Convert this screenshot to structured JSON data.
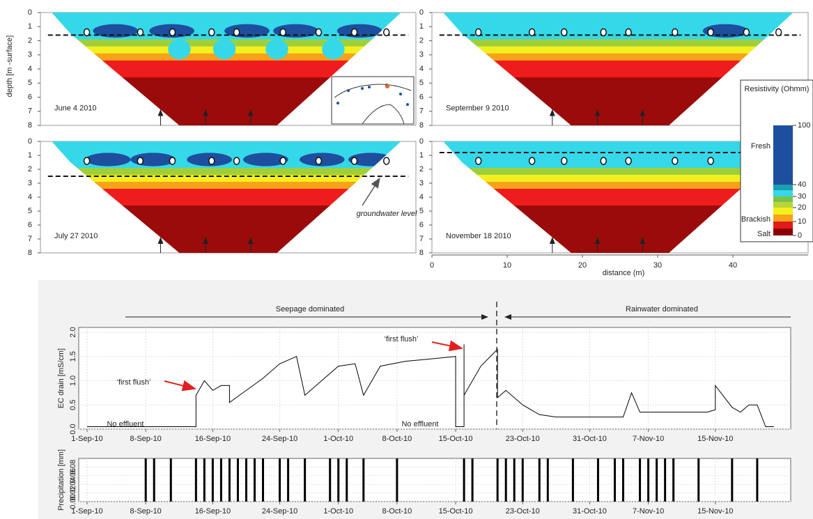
{
  "resistivity": {
    "depth_label": "depth [m -surface]",
    "depth_lim": [
      0,
      8
    ],
    "depth_ticks": [
      0,
      1,
      2,
      3,
      4,
      5,
      6,
      7,
      8
    ],
    "panels": [
      "June 4 2010",
      "September 9 2010",
      "July 27 2010",
      "November 18 2010"
    ],
    "groundwater_label": "groundwater level",
    "distance_label": "distance (m)",
    "distance_lim": [
      0,
      50
    ],
    "distance_ticks": [
      0,
      10,
      20,
      30,
      40
    ],
    "colorbar": {
      "title": "Resistivity (Ohmm)",
      "ticks": [
        0,
        10,
        20,
        30,
        40,
        100
      ],
      "classes": [
        "Fresh",
        "Brackish",
        "Salt"
      ]
    }
  },
  "chart_data": [
    {
      "type": "line",
      "y_label": "EC drain [mS/cm]",
      "annotations": [
        "Seepage dominated",
        "Rainwater dominated",
        "‘first flush’",
        "‘first flush’",
        "No effluent",
        "No effluent"
      ],
      "x": [
        "2010-09-01",
        "2010-09-14",
        "2010-09-14",
        "2010-09-15",
        "2010-09-16",
        "2010-09-17",
        "2010-09-18",
        "2010-09-18",
        "2010-09-20",
        "2010-09-22",
        "2010-09-24",
        "2010-09-26",
        "2010-09-27",
        "2010-09-29",
        "2010-10-01",
        "2010-10-03",
        "2010-10-04",
        "2010-10-06",
        "2010-10-09",
        "2010-10-12",
        "2010-10-15",
        "2010-10-15",
        "2010-10-16",
        "2010-10-16",
        "2010-10-16",
        "2010-10-18",
        "2010-10-20",
        "2010-10-20",
        "2010-10-21",
        "2010-10-23",
        "2010-10-25",
        "2010-10-27",
        "2010-11-04",
        "2010-11-05",
        "2010-11-06",
        "2010-11-14",
        "2010-11-15",
        "2010-11-15",
        "2010-11-17",
        "2010-11-18",
        "2010-11-19",
        "2010-11-20",
        "2010-11-21",
        "2010-11-22"
      ],
      "values": [
        0.05,
        0.05,
        0.7,
        1.0,
        0.8,
        0.9,
        0.9,
        0.55,
        0.8,
        1.05,
        1.35,
        1.5,
        0.7,
        1.0,
        1.3,
        1.35,
        0.7,
        1.3,
        1.4,
        1.45,
        1.5,
        0.05,
        0.05,
        1.75,
        0.7,
        1.3,
        1.65,
        0.65,
        0.8,
        0.5,
        0.3,
        0.25,
        0.25,
        0.75,
        0.35,
        0.35,
        0.4,
        0.9,
        0.45,
        0.35,
        0.5,
        0.5,
        0.05,
        0.05
      ],
      "color": "#000000",
      "xlim": [
        "2010-08-31",
        "2010-11-24"
      ],
      "xticks": [
        {
          "value": "2010-09-01",
          "label": "1-Sep-10"
        },
        {
          "value": "2010-09-08",
          "label": "8-Sep-10"
        },
        {
          "value": "2010-09-16",
          "label": "16-Sep-10"
        },
        {
          "value": "2010-09-24",
          "label": "24-Sep-10"
        },
        {
          "value": "2010-10-01",
          "label": "1-Oct-10"
        },
        {
          "value": "2010-10-08",
          "label": "8-Oct-10"
        },
        {
          "value": "2010-10-15",
          "label": "15-Oct-10"
        },
        {
          "value": "2010-10-23",
          "label": "23-Oct-10"
        },
        {
          "value": "2010-10-31",
          "label": "31-Oct-10"
        },
        {
          "value": "2010-11-07",
          "label": "7-Nov-10"
        },
        {
          "value": "2010-11-15",
          "label": "15-Nov-10"
        }
      ],
      "ylim": [
        0,
        2.1
      ],
      "yticks": [
        {
          "value": 0,
          "label": "0.0"
        },
        {
          "value": 0.5,
          "label": "0.5"
        },
        {
          "value": 1,
          "label": "1.0"
        },
        {
          "value": 1.5,
          "label": "1.5"
        },
        {
          "value": 2,
          "label": "2.0"
        }
      ],
      "grid": true
    },
    {
      "type": "bar",
      "y_label": "Precipitation [mm]",
      "x": [
        "2010-09-08",
        "2010-09-09",
        "2010-09-11",
        "2010-09-14",
        "2010-09-15",
        "2010-09-16",
        "2010-09-17",
        "2010-09-18",
        "2010-09-19",
        "2010-09-20",
        "2010-09-21",
        "2010-09-22",
        "2010-09-24",
        "2010-09-25",
        "2010-09-27",
        "2010-09-30",
        "2010-10-01",
        "2010-10-02",
        "2010-10-04",
        "2010-10-08",
        "2010-10-16",
        "2010-10-17",
        "2010-10-20",
        "2010-10-21",
        "2010-10-22",
        "2010-10-23",
        "2010-10-25",
        "2010-10-26",
        "2010-10-29",
        "2010-11-01",
        "2010-11-03",
        "2010-11-04",
        "2010-11-06",
        "2010-11-07",
        "2010-11-08",
        "2010-11-09",
        "2010-11-10",
        "2010-11-13",
        "2010-11-17",
        "2010-11-20"
      ],
      "values": [
        0.1,
        0.1,
        0.1,
        0.1,
        0.1,
        0.1,
        0.1,
        0.1,
        0.1,
        0.1,
        0.1,
        0.1,
        0.1,
        0.1,
        0.1,
        0.1,
        0.1,
        0.1,
        0.1,
        0.1,
        0.1,
        0.1,
        0.1,
        0.1,
        0.1,
        0.1,
        0.1,
        0.1,
        0.1,
        0.1,
        0.1,
        0.1,
        0.1,
        0.1,
        0.1,
        0.1,
        0.1,
        0.1,
        0.1,
        0.1
      ],
      "color": "#000000",
      "xlim": [
        "2010-08-31",
        "2010-11-24"
      ],
      "xticks": [
        {
          "value": "2010-09-01",
          "label": "1-Sep-10"
        },
        {
          "value": "2010-09-08",
          "label": "8-Sep-10"
        },
        {
          "value": "2010-09-16",
          "label": "16-Sep-10"
        },
        {
          "value": "2010-09-24",
          "label": "24-Sep-10"
        },
        {
          "value": "2010-10-01",
          "label": "1-Oct-10"
        },
        {
          "value": "2010-10-08",
          "label": "8-Oct-10"
        },
        {
          "value": "2010-10-15",
          "label": "15-Oct-10"
        },
        {
          "value": "2010-10-23",
          "label": "23-Oct-10"
        },
        {
          "value": "2010-10-31",
          "label": "31-Oct-10"
        },
        {
          "value": "2010-11-07",
          "label": "7-Nov-10"
        },
        {
          "value": "2010-11-15",
          "label": "15-Nov-10"
        }
      ],
      "ylim": [
        0,
        0.1
      ],
      "yticks": [
        {
          "value": 0,
          "label": "0.00"
        },
        {
          "value": 0.02,
          "label": "0.02"
        },
        {
          "value": 0.04,
          "label": "0.04"
        },
        {
          "value": 0.06,
          "label": "0.06"
        },
        {
          "value": 0.08,
          "label": "0.08"
        }
      ],
      "grid": true
    }
  ]
}
